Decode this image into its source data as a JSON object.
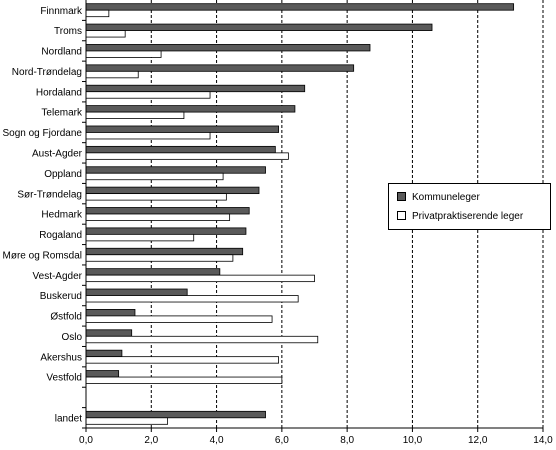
{
  "chart_data": {
    "type": "bar",
    "orientation": "horizontal",
    "categories": [
      "Finnmark",
      "Troms",
      "Nordland",
      "Nord-Trøndelag",
      "Hordaland",
      "Telemark",
      "Sogn og Fjordane",
      "Aust-Agder",
      "Oppland",
      "Sør-Trøndelag",
      "Hedmark",
      "Rogaland",
      "Møre og Romsdal",
      "Vest-Agder",
      "Buskerud",
      "Østfold",
      "Oslo",
      "Akershus",
      "Vestfold",
      "",
      "landet"
    ],
    "series": [
      {
        "name": "Kommuneleger",
        "color": "#5a5a5a",
        "values": [
          13.1,
          10.6,
          8.7,
          8.2,
          6.7,
          6.4,
          5.9,
          5.8,
          5.5,
          5.3,
          5.0,
          4.9,
          4.8,
          4.1,
          3.1,
          1.5,
          1.4,
          1.1,
          1.0,
          null,
          5.5
        ]
      },
      {
        "name": "Privatpraktiserende leger",
        "color": "#ffffff",
        "values": [
          0.7,
          1.2,
          2.3,
          1.6,
          3.8,
          3.0,
          3.8,
          6.2,
          4.2,
          4.3,
          4.4,
          3.3,
          4.5,
          7.0,
          6.5,
          5.7,
          7.1,
          5.9,
          6.0,
          null,
          2.5
        ]
      }
    ],
    "xticks": [
      "0,0",
      "2,0",
      "4,0",
      "6,0",
      "8,0",
      "10,0",
      "12,0",
      "14,0"
    ],
    "xlim": [
      0,
      14
    ],
    "grid": "vertical dashed at every 2,0",
    "legend_position": "right-middle"
  },
  "legend": {
    "items": [
      {
        "label": "Kommuneleger",
        "color": "#5a5a5a"
      },
      {
        "label": "Privatpraktiserende leger",
        "color": "#ffffff"
      }
    ]
  }
}
